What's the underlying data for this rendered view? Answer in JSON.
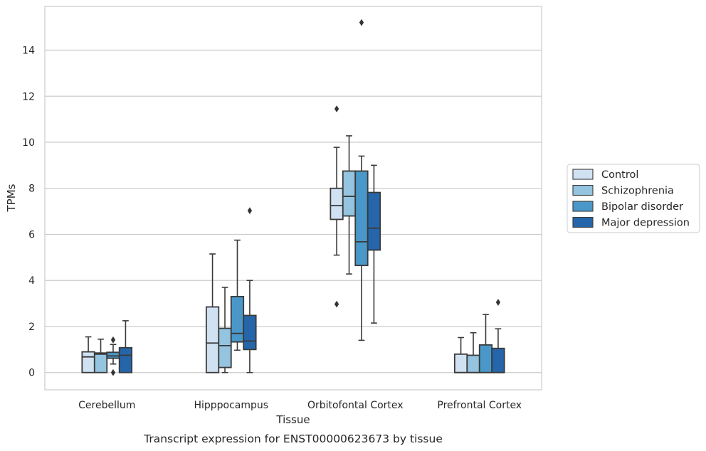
{
  "chart_data": {
    "type": "boxplot",
    "title": "",
    "caption": "Transcript expression for ENST00000623673 by tissue",
    "xlabel": "Tissue",
    "ylabel": "TPMs",
    "ylim": [
      -0.75,
      15.9
    ],
    "yticks": [
      0,
      2,
      4,
      6,
      8,
      10,
      12,
      14
    ],
    "grid": "horizontal",
    "legend_position": "right",
    "categories": [
      "Cerebellum",
      "Hipppocampus",
      "Orbitofontal Cortex",
      "Prefrontal Cortex"
    ],
    "series": [
      {
        "name": "Control",
        "color": "#d0e1f2",
        "boxes": [
          {
            "q1": 0,
            "median": 0.68,
            "q3": 0.9,
            "whisker_low": 0,
            "whisker_high": 1.55,
            "outliers": []
          },
          {
            "q1": 0,
            "median": 1.28,
            "q3": 2.85,
            "whisker_low": 0,
            "whisker_high": 5.15,
            "outliers": []
          },
          {
            "q1": 6.65,
            "median": 7.25,
            "q3": 8.0,
            "whisker_low": 5.1,
            "whisker_high": 9.78,
            "outliers": [
              11.45,
              2.97
            ]
          },
          {
            "q1": 0,
            "median": 0,
            "q3": 0.8,
            "whisker_low": 0,
            "whisker_high": 1.52,
            "outliers": []
          }
        ]
      },
      {
        "name": "Schizophrenia",
        "color": "#94c4df",
        "boxes": [
          {
            "q1": 0,
            "median": 0.8,
            "q3": 0.85,
            "whisker_low": 0,
            "whisker_high": 1.45,
            "outliers": []
          },
          {
            "q1": 0.22,
            "median": 1.17,
            "q3": 1.92,
            "whisker_low": 0,
            "whisker_high": 3.7,
            "outliers": []
          },
          {
            "q1": 6.8,
            "median": 7.65,
            "q3": 8.75,
            "whisker_low": 4.28,
            "whisker_high": 10.28,
            "outliers": []
          },
          {
            "q1": 0,
            "median": 0,
            "q3": 0.75,
            "whisker_low": 0,
            "whisker_high": 1.73,
            "outliers": []
          }
        ]
      },
      {
        "name": "Bipolar disorder",
        "color": "#4a98c9",
        "boxes": [
          {
            "q1": 0.62,
            "median": 0.72,
            "q3": 0.88,
            "whisker_low": 0.37,
            "whisker_high": 1.22,
            "outliers": [
              1.42,
              0
            ]
          },
          {
            "q1": 1.33,
            "median": 1.7,
            "q3": 3.3,
            "whisker_low": 0.97,
            "whisker_high": 5.75,
            "outliers": []
          },
          {
            "q1": 4.65,
            "median": 5.68,
            "q3": 8.75,
            "whisker_low": 1.4,
            "whisker_high": 9.4,
            "outliers": [
              15.2
            ]
          },
          {
            "q1": 0,
            "median": 0,
            "q3": 1.2,
            "whisker_low": 0,
            "whisker_high": 2.52,
            "outliers": []
          }
        ]
      },
      {
        "name": "Major depression",
        "color": "#2566ab",
        "boxes": [
          {
            "q1": 0,
            "median": 0.75,
            "q3": 1.08,
            "whisker_low": 0,
            "whisker_high": 2.25,
            "outliers": []
          },
          {
            "q1": 1.0,
            "median": 1.37,
            "q3": 2.48,
            "whisker_low": 0,
            "whisker_high": 4.0,
            "outliers": [
              7.03
            ]
          },
          {
            "q1": 5.32,
            "median": 6.27,
            "q3": 7.82,
            "whisker_low": 2.15,
            "whisker_high": 9.0,
            "outliers": []
          },
          {
            "q1": 0,
            "median": 0,
            "q3": 1.05,
            "whisker_low": 0,
            "whisker_high": 1.9,
            "outliers": [
              3.05
            ]
          }
        ]
      }
    ]
  }
}
